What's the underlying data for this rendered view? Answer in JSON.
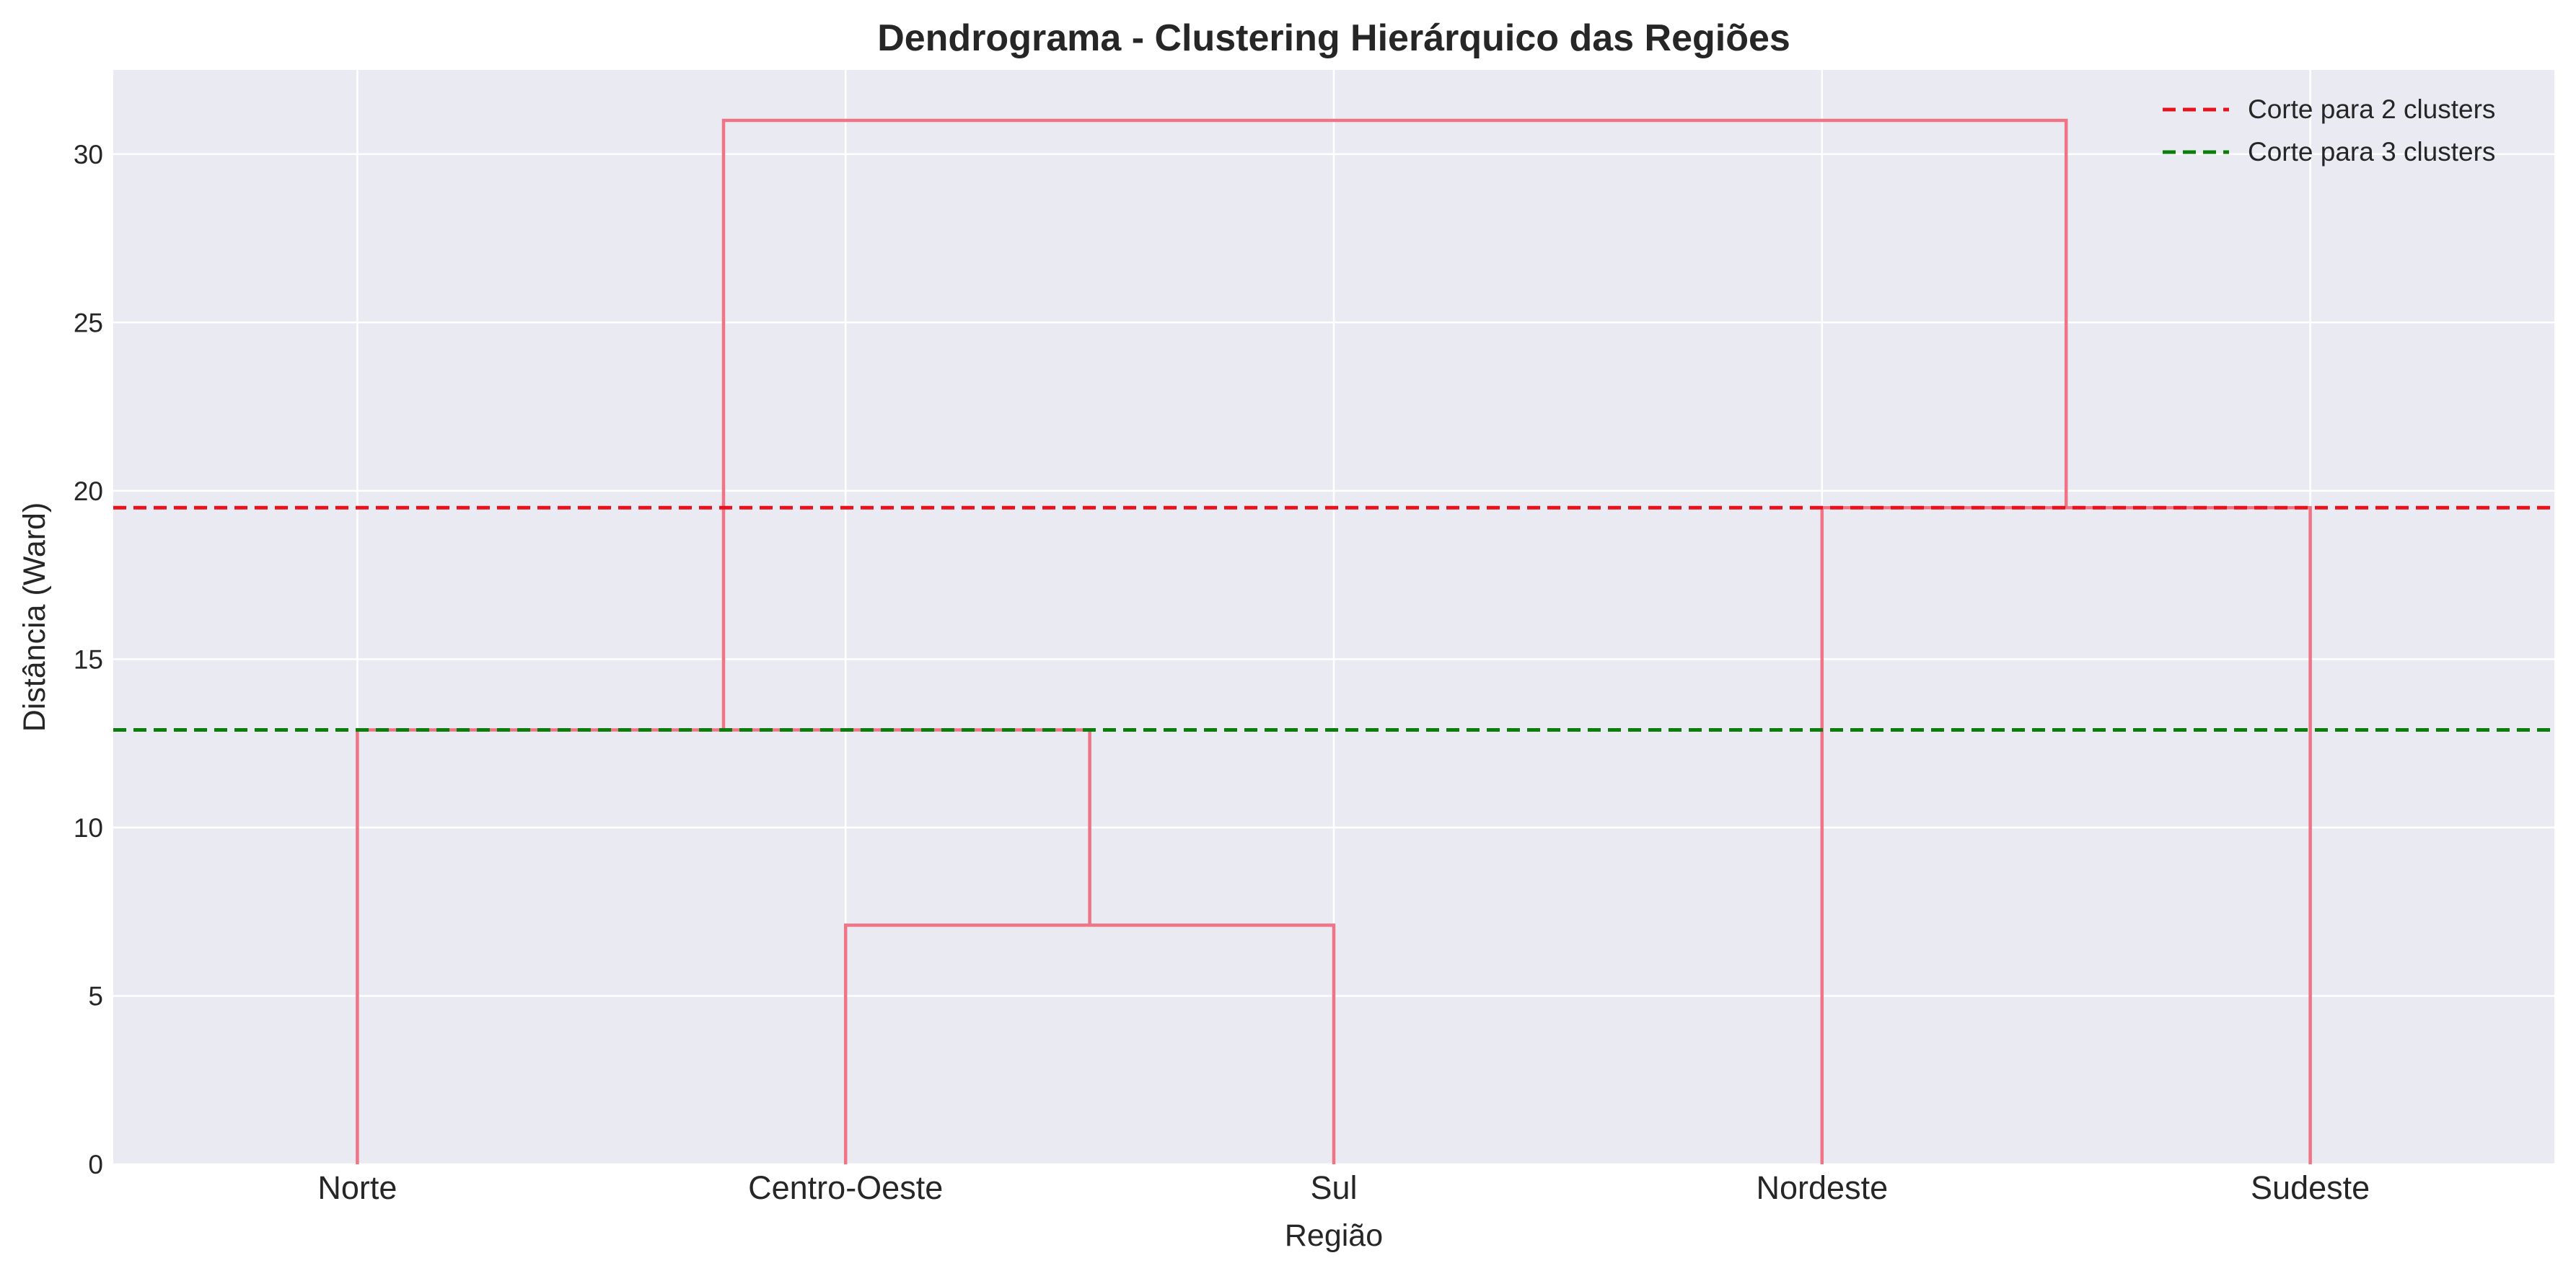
{
  "chart_data": {
    "type": "dendrogram",
    "title": "Dendrograma - Clustering Hierárquico das Regiões",
    "xlabel": "Região",
    "ylabel": "Distância (Ward)",
    "ylim": [
      0,
      32.5
    ],
    "yticks": [
      0,
      5,
      10,
      15,
      20,
      25,
      30
    ],
    "leaves": [
      "Norte",
      "Centro-Oeste",
      "Sul",
      "Nordeste",
      "Sudeste"
    ],
    "merges": [
      {
        "left": "Centro-Oeste",
        "right": "Sul",
        "height": 7.1
      },
      {
        "left": "Norte",
        "right": "Centro-Oeste + Sul",
        "height": 12.9
      },
      {
        "left": "Nordeste",
        "right": "Sudeste",
        "height": 19.5
      },
      {
        "left": "Norte + Centro-Oeste + Sul",
        "right": "Nordeste + Sudeste",
        "height": 31.0
      }
    ],
    "link_color": "#f07386",
    "cut_lines": [
      {
        "label": "Corte para 2 clusters",
        "y": 19.5,
        "color": "#e8121c",
        "style": "dashed"
      },
      {
        "label": "Corte para 3 clusters",
        "y": 12.9,
        "color": "#0a7d0a",
        "style": "dashed"
      }
    ],
    "legend_position": "top-right",
    "grid": true,
    "background": "#eaeaf2"
  }
}
